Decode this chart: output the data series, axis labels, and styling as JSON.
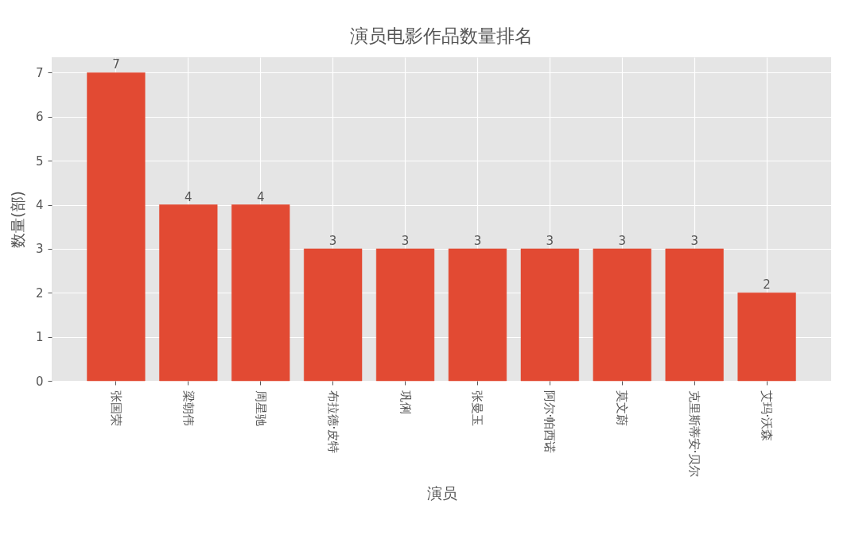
{
  "chart_data": {
    "type": "bar",
    "title": "演员电影作品数量排名",
    "xlabel": "演员",
    "ylabel": "数量(部)",
    "categories": [
      "张国荣",
      "梁朝伟",
      "周星驰",
      "布拉德·皮特",
      "巩俐",
      "张曼玉",
      "阿尔·帕西诺",
      "莫文蔚",
      "克里斯蒂安·贝尔",
      "艾玛·沃森"
    ],
    "values": [
      7,
      4,
      4,
      3,
      3,
      3,
      3,
      3,
      3,
      2
    ],
    "color": "#e24a33",
    "ylim": [
      0,
      7.35
    ],
    "yticks": [
      0,
      1,
      2,
      3,
      4,
      5,
      6,
      7
    ],
    "grid": true,
    "data_labels": true
  }
}
